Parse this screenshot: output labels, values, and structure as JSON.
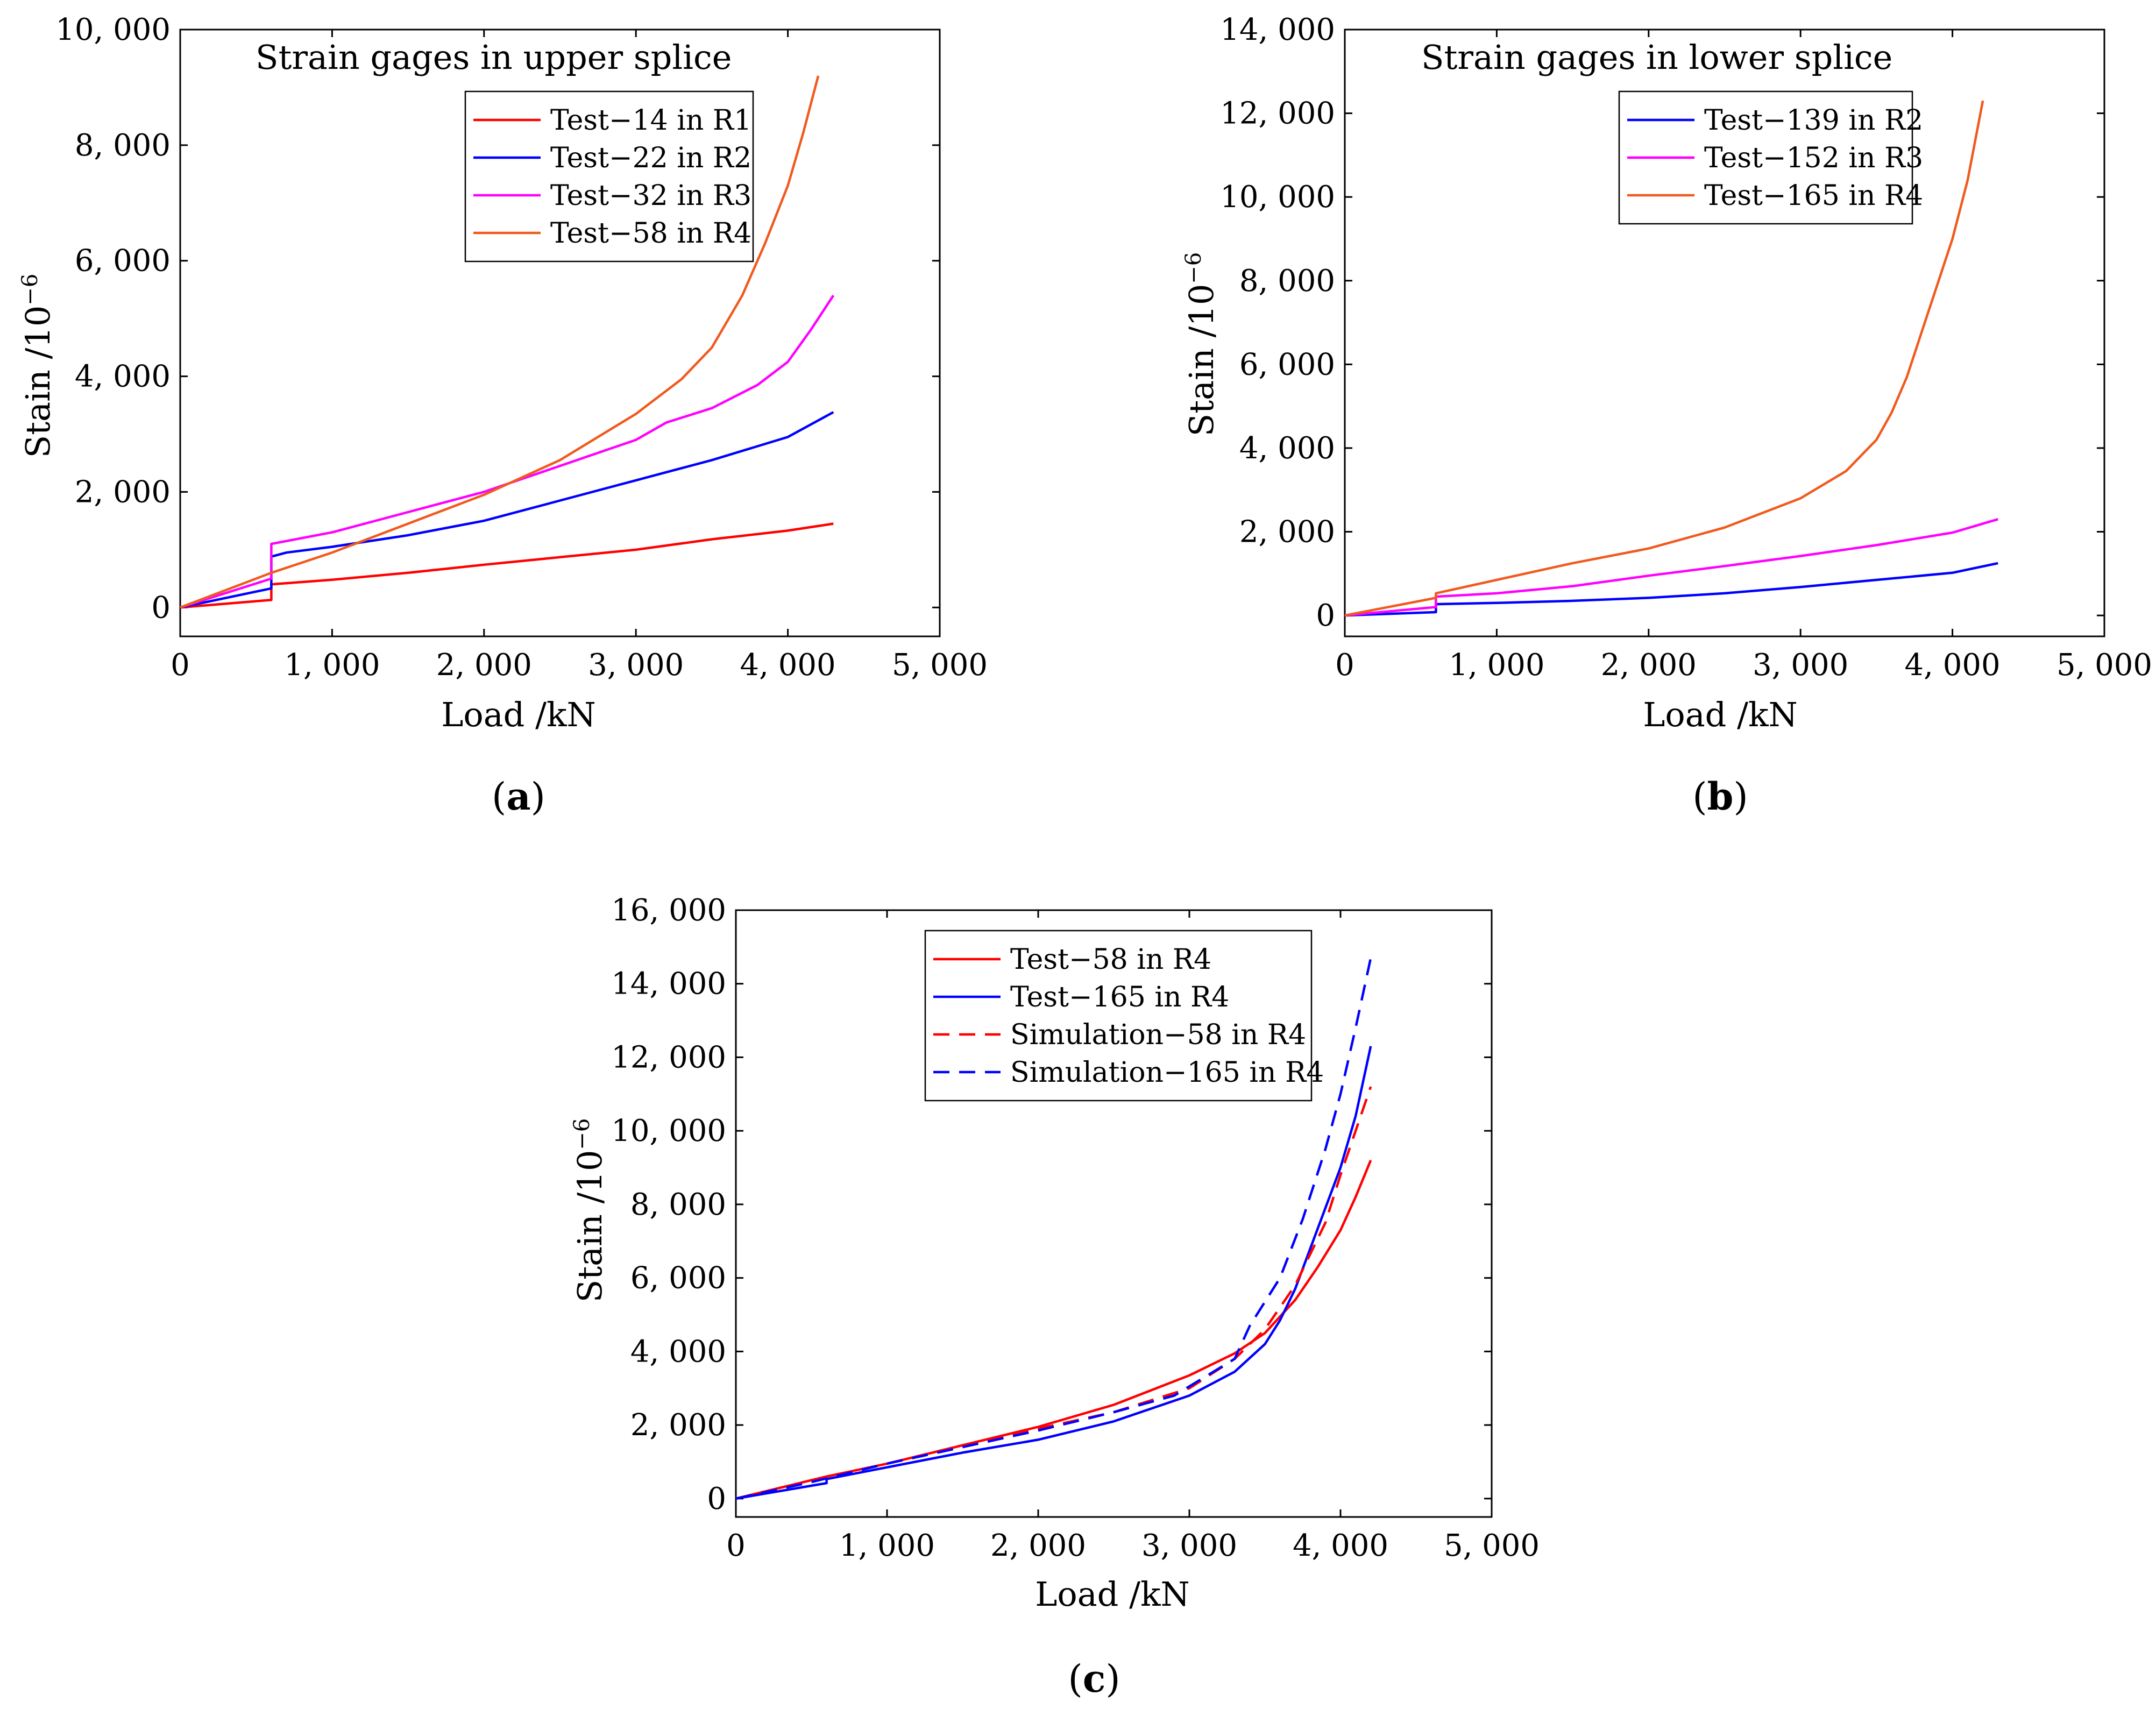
{
  "panels": [
    {
      "caption_letter": "a",
      "chart_data": {
        "type": "line",
        "title": "",
        "annotation": "Strain gages in upper splice",
        "xlabel": "Load /kN",
        "ylabel": "Stain /10",
        "ylabel_sup": "−6",
        "xlim": [
          0,
          5000
        ],
        "ylim": [
          -500,
          10000
        ],
        "xticks": [
          0,
          1000,
          2000,
          3000,
          4000,
          5000
        ],
        "xtick_labels": [
          "0",
          "1, 000",
          "2, 000",
          "3, 000",
          "4, 000",
          "5, 000"
        ],
        "yticks": [
          0,
          2000,
          4000,
          6000,
          8000,
          10000
        ],
        "ytick_labels": [
          "0",
          "2, 000",
          "4, 000",
          "6, 000",
          "8, 000",
          "10, 000"
        ],
        "grid": false,
        "legend_position": "top-right",
        "series": [
          {
            "name": "Test−14 in R1",
            "color": "#ff0000",
            "style": "solid",
            "x": [
              0,
              600,
              600,
              1000,
              1500,
              2000,
              2500,
              3000,
              3500,
              4000,
              4300
            ],
            "y": [
              0,
              130,
              400,
              480,
              600,
              740,
              870,
              1000,
              1180,
              1330,
              1450
            ]
          },
          {
            "name": "Test−22 in R2",
            "color": "#0000ff",
            "style": "solid",
            "x": [
              0,
              600,
              600,
              700,
              1000,
              1500,
              2000,
              2500,
              3000,
              3500,
              4000,
              4300
            ],
            "y": [
              0,
              330,
              880,
              950,
              1050,
              1250,
              1500,
              1850,
              2200,
              2550,
              2950,
              3380
            ]
          },
          {
            "name": "Test−32 in R3",
            "color": "#ff00ff",
            "style": "solid",
            "x": [
              0,
              600,
              600,
              1000,
              1500,
              2000,
              2500,
              3000,
              3200,
              3500,
              3800,
              4000,
              4150,
              4300
            ],
            "y": [
              0,
              500,
              1100,
              1300,
              1650,
              2000,
              2450,
              2900,
              3200,
              3450,
              3850,
              4250,
              4800,
              5400
            ]
          },
          {
            "name": "Test−58 in R4",
            "color": "#f05a1e",
            "style": "solid",
            "x": [
              0,
              600,
              1000,
              1500,
              2000,
              2500,
              3000,
              3300,
              3500,
              3700,
              3850,
              4000,
              4100,
              4200
            ],
            "y": [
              0,
              600,
              950,
              1450,
              1950,
              2550,
              3350,
              3950,
              4500,
              5400,
              6300,
              7300,
              8200,
              9200
            ]
          }
        ]
      }
    },
    {
      "caption_letter": "b",
      "chart_data": {
        "type": "line",
        "title": "",
        "annotation": "Strain gages in lower splice",
        "xlabel": "Load /kN",
        "ylabel": "Stain /10",
        "ylabel_sup": "−6",
        "xlim": [
          0,
          5000
        ],
        "ylim": [
          -500,
          14000
        ],
        "xticks": [
          0,
          1000,
          2000,
          3000,
          4000,
          5000
        ],
        "xtick_labels": [
          "0",
          "1, 000",
          "2, 000",
          "3, 000",
          "4, 000",
          "5, 000"
        ],
        "yticks": [
          0,
          2000,
          4000,
          6000,
          8000,
          10000,
          12000,
          14000
        ],
        "ytick_labels": [
          "0",
          "2, 000",
          "4, 000",
          "6, 000",
          "8, 000",
          "10, 000",
          "12, 000",
          "14, 000"
        ],
        "grid": false,
        "legend_position": "top-right",
        "series": [
          {
            "name": "Test−139 in R2",
            "color": "#0000ff",
            "style": "solid",
            "x": [
              0,
              600,
              600,
              1000,
              1500,
              2000,
              2500,
              3000,
              3500,
              4000,
              4300
            ],
            "y": [
              0,
              80,
              270,
              300,
              350,
              420,
              530,
              680,
              850,
              1020,
              1250
            ]
          },
          {
            "name": "Test−152 in R3",
            "color": "#ff00ff",
            "style": "solid",
            "x": [
              0,
              600,
              600,
              1000,
              1500,
              2000,
              2500,
              3000,
              3500,
              4000,
              4300
            ],
            "y": [
              0,
              200,
              450,
              530,
              700,
              950,
              1180,
              1420,
              1680,
              1980,
              2300
            ]
          },
          {
            "name": "Test−165 in R4",
            "color": "#f05a1e",
            "style": "solid",
            "x": [
              0,
              600,
              600,
              1000,
              1500,
              2000,
              2500,
              3000,
              3300,
              3500,
              3600,
              3700,
              3800,
              3900,
              4000,
              4100,
              4200
            ],
            "y": [
              0,
              420,
              530,
              850,
              1250,
              1600,
              2100,
              2800,
              3450,
              4200,
              4850,
              5700,
              6800,
              7900,
              9000,
              10400,
              12300
            ]
          }
        ]
      }
    },
    {
      "caption_letter": "c",
      "chart_data": {
        "type": "line",
        "title": "",
        "annotation": "",
        "xlabel": "Load /kN",
        "ylabel": "Stain /10",
        "ylabel_sup": "−6",
        "xlim": [
          0,
          5000
        ],
        "ylim": [
          -500,
          16000
        ],
        "xticks": [
          0,
          1000,
          2000,
          3000,
          4000,
          5000
        ],
        "xtick_labels": [
          "0",
          "1, 000",
          "2, 000",
          "3, 000",
          "4, 000",
          "5, 000"
        ],
        "yticks": [
          0,
          2000,
          4000,
          6000,
          8000,
          10000,
          12000,
          14000,
          16000
        ],
        "ytick_labels": [
          "0",
          "2, 000",
          "4, 000",
          "6, 000",
          "8, 000",
          "10, 000",
          "12, 000",
          "14, 000",
          "16, 000"
        ],
        "grid": false,
        "legend_position": "top-center",
        "series": [
          {
            "name": "Test−58 in R4",
            "color": "#ff0000",
            "style": "solid",
            "x": [
              0,
              600,
              1000,
              1500,
              2000,
              2500,
              3000,
              3300,
              3500,
              3700,
              3850,
              4000,
              4100,
              4200
            ],
            "y": [
              0,
              600,
              950,
              1450,
              1950,
              2550,
              3350,
              3950,
              4500,
              5400,
              6300,
              7300,
              8200,
              9200
            ]
          },
          {
            "name": "Test−165 in R4",
            "color": "#0000ff",
            "style": "solid",
            "x": [
              0,
              600,
              600,
              1000,
              1500,
              2000,
              2500,
              3000,
              3300,
              3500,
              3600,
              3700,
              3800,
              3900,
              4000,
              4100,
              4200
            ],
            "y": [
              0,
              420,
              530,
              850,
              1250,
              1600,
              2100,
              2800,
              3450,
              4200,
              4850,
              5700,
              6800,
              7900,
              9000,
              10400,
              12300
            ]
          },
          {
            "name": "Simulation−58 in R4",
            "color": "#ff0000",
            "style": "dashed",
            "x": [
              0,
              500,
              1000,
              1500,
              2000,
              2500,
              3000,
              3300,
              3500,
              3700,
              3900,
              4000,
              4100,
              4200
            ],
            "y": [
              0,
              480,
              950,
              1450,
              1900,
              2350,
              3000,
              3800,
              4600,
              5800,
              7500,
              8800,
              10000,
              11200
            ]
          },
          {
            "name": "Simulation−165 in R4",
            "color": "#0000ff",
            "style": "dashed",
            "x": [
              0,
              500,
              1000,
              1500,
              2000,
              2500,
              2900,
              3300,
              3400,
              3600,
              3750,
              3900,
              4000,
              4100,
              4200
            ],
            "y": [
              0,
              450,
              950,
              1400,
              1850,
              2350,
              2800,
              3800,
              4700,
              6000,
              7600,
              9500,
              11000,
              12800,
              14700
            ]
          }
        ]
      }
    }
  ]
}
